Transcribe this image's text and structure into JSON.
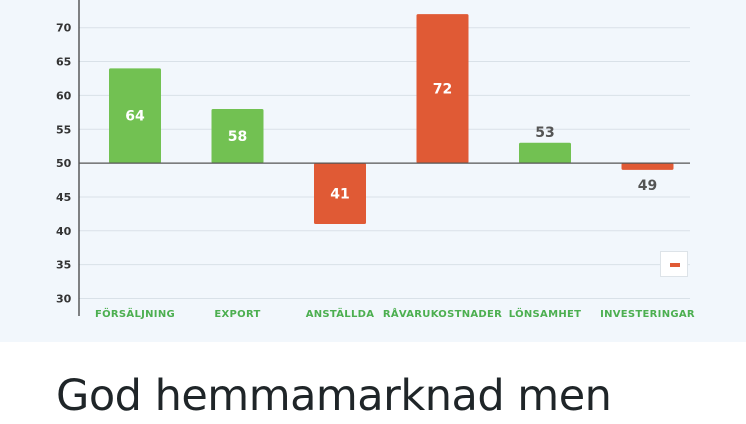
{
  "chart_data": {
    "type": "bar",
    "baseline": 50,
    "ylim": [
      30,
      73
    ],
    "yticks": [
      30,
      35,
      40,
      45,
      50,
      55,
      60,
      65,
      70
    ],
    "grid": true,
    "categories": [
      "FÖRSÄLJNING",
      "EXPORT",
      "ANSTÄLLDA",
      "RÅVARUKOSTNADER",
      "LÖNSAMHET",
      "INVESTERINGAR"
    ],
    "values": [
      64,
      58,
      41,
      72,
      53,
      49
    ],
    "bar_colors": [
      "#72c152",
      "#72c152",
      "#e05a35",
      "#e05a35",
      "#72c152",
      "#e05a35"
    ],
    "legend": {
      "placement": "bottom-right",
      "marker": "-"
    },
    "colors": {
      "positive": "#72c152",
      "negative": "#e05a35",
      "axis_label": "#4caf50"
    }
  },
  "headline": "God hemmamarknad men"
}
